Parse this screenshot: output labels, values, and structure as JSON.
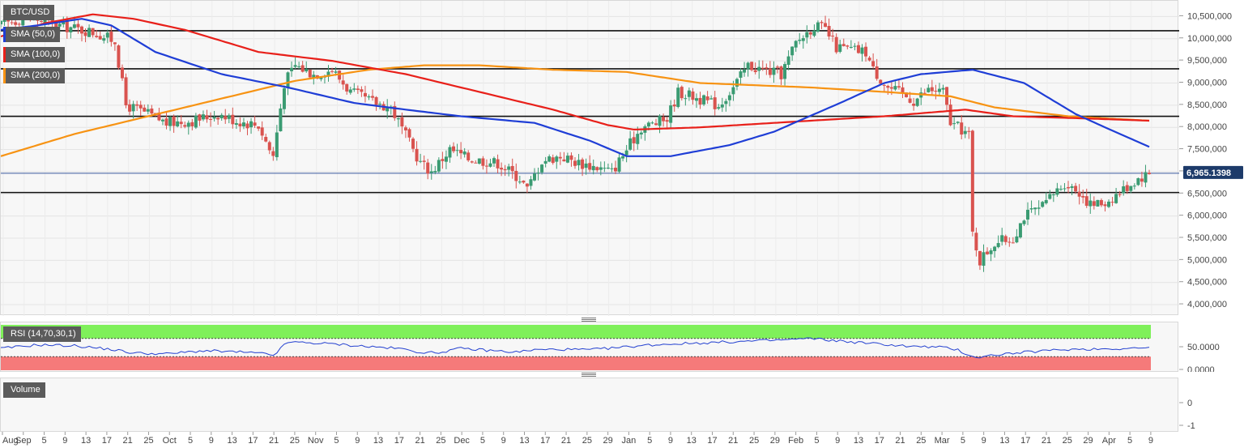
{
  "chart_data": [
    {
      "type": "candlestick",
      "title": "BTC/USD",
      "ylim": [
        3800000,
        10800000
      ],
      "y_ticks": [
        "4,000,000",
        "4,500,000",
        "5,000,000",
        "5,500,000",
        "6,000,000",
        "6,500,000",
        "7,000,000",
        "7,500,000",
        "8,000,000",
        "8,500,000",
        "9,000,000",
        "9,500,000",
        "10,000,000",
        "10,500,000"
      ],
      "x_ticks": [
        "Aug",
        "Sep",
        "5",
        "9",
        "13",
        "17",
        "21",
        "25",
        "Oct",
        "5",
        "9",
        "13",
        "17",
        "21",
        "25",
        "Nov",
        "5",
        "9",
        "13",
        "17",
        "21",
        "25",
        "Dec",
        "5",
        "9",
        "13",
        "17",
        "21",
        "25",
        "29",
        "Jan",
        "5",
        "9",
        "13",
        "17",
        "21",
        "25",
        "29",
        "Feb",
        "5",
        "9",
        "13",
        "17",
        "21",
        "25",
        "Mar",
        "5",
        "9",
        "13",
        "17",
        "21",
        "25",
        "29",
        "Apr",
        "5",
        "9"
      ],
      "legend": [
        "SMA (50,0)",
        "SMA (100,0)",
        "SMA (200,0)"
      ],
      "last_price_label": "6,965.1398",
      "last_price": 6965000,
      "horizontal_levels": [
        10180000,
        9320000,
        8250000,
        6530000
      ],
      "grid": true,
      "colors": {
        "up": "#3a9b72",
        "down": "#d9534f",
        "sma50": "#1f3ed6",
        "sma100": "#e8201a",
        "sma200": "#f79313",
        "last_price_tag": "#1d3b6a"
      },
      "price_anchors": [
        [
          0,
          10300000
        ],
        [
          7,
          10500000
        ],
        [
          16,
          10300000
        ],
        [
          25,
          10150000
        ],
        [
          31,
          9950000
        ],
        [
          34,
          8500000
        ],
        [
          40,
          8300000
        ],
        [
          45,
          8100000
        ],
        [
          52,
          8150000
        ],
        [
          59,
          8300000
        ],
        [
          64,
          8150000
        ],
        [
          70,
          8050000
        ],
        [
          73,
          7500000
        ],
        [
          74,
          7350000
        ],
        [
          77,
          9000000
        ],
        [
          80,
          9400000
        ],
        [
          85,
          9200000
        ],
        [
          90,
          9300000
        ],
        [
          95,
          8800000
        ],
        [
          100,
          8600000
        ],
        [
          106,
          8450000
        ],
        [
          111,
          7650000
        ],
        [
          114,
          7200000
        ],
        [
          117,
          7000000
        ],
        [
          122,
          7500000
        ],
        [
          127,
          7300000
        ],
        [
          131,
          7250000
        ],
        [
          135,
          7200000
        ],
        [
          141,
          6850000
        ],
        [
          143,
          6600000
        ],
        [
          147,
          7250000
        ],
        [
          152,
          7350000
        ],
        [
          157,
          7200000
        ],
        [
          162,
          7100000
        ],
        [
          166,
          7000000
        ],
        [
          170,
          7500000
        ],
        [
          174,
          8000000
        ],
        [
          178,
          8100000
        ],
        [
          181,
          8200000
        ],
        [
          184,
          8800000
        ],
        [
          188,
          8700000
        ],
        [
          191,
          8600000
        ],
        [
          195,
          8500000
        ],
        [
          199,
          8900000
        ],
        [
          203,
          9400000
        ],
        [
          207,
          9300000
        ],
        [
          212,
          9200000
        ],
        [
          216,
          9900000
        ],
        [
          221,
          10300000
        ],
        [
          224,
          10200000
        ],
        [
          227,
          9800000
        ],
        [
          231,
          9750000
        ],
        [
          235,
          9700000
        ],
        [
          237,
          9300000
        ],
        [
          241,
          8900000
        ],
        [
          245,
          8750000
        ],
        [
          248,
          8600000
        ],
        [
          252,
          8850000
        ],
        [
          256,
          8800000
        ],
        [
          258,
          8100000
        ],
        [
          262,
          7900000
        ],
        [
          263,
          7800000
        ],
        [
          264,
          5600000
        ],
        [
          266,
          5000000
        ],
        [
          270,
          5400000
        ],
        [
          275,
          5500000
        ],
        [
          278,
          6000000
        ],
        [
          283,
          6200000
        ],
        [
          286,
          6500000
        ],
        [
          289,
          6750000
        ],
        [
          293,
          6550000
        ],
        [
          296,
          6250000
        ],
        [
          300,
          6300000
        ],
        [
          305,
          6600000
        ],
        [
          309,
          6850000
        ],
        [
          312,
          6965000
        ]
      ],
      "sma_50": [
        [
          0,
          10200000
        ],
        [
          10,
          10300000
        ],
        [
          22,
          10450000
        ],
        [
          30,
          10300000
        ],
        [
          42,
          9700000
        ],
        [
          60,
          9200000
        ],
        [
          78,
          8900000
        ],
        [
          96,
          8550000
        ],
        [
          110,
          8400000
        ],
        [
          125,
          8250000
        ],
        [
          145,
          8100000
        ],
        [
          160,
          7700000
        ],
        [
          170,
          7350000
        ],
        [
          182,
          7350000
        ],
        [
          198,
          7600000
        ],
        [
          210,
          7900000
        ],
        [
          228,
          8550000
        ],
        [
          240,
          9000000
        ],
        [
          250,
          9200000
        ],
        [
          264,
          9300000
        ],
        [
          278,
          9000000
        ],
        [
          292,
          8300000
        ],
        [
          300,
          8000000
        ],
        [
          312,
          7560000
        ]
      ],
      "sma_100": [
        [
          0,
          10050000
        ],
        [
          12,
          10350000
        ],
        [
          25,
          10550000
        ],
        [
          36,
          10450000
        ],
        [
          50,
          10200000
        ],
        [
          70,
          9700000
        ],
        [
          90,
          9500000
        ],
        [
          110,
          9200000
        ],
        [
          130,
          8800000
        ],
        [
          150,
          8400000
        ],
        [
          165,
          8050000
        ],
        [
          172,
          7950000
        ],
        [
          190,
          8000000
        ],
        [
          210,
          8100000
        ],
        [
          240,
          8250000
        ],
        [
          262,
          8400000
        ],
        [
          275,
          8250000
        ],
        [
          295,
          8200000
        ],
        [
          312,
          8150000
        ]
      ],
      "sma_200": [
        [
          0,
          7350000
        ],
        [
          20,
          7850000
        ],
        [
          40,
          8250000
        ],
        [
          60,
          8650000
        ],
        [
          80,
          9050000
        ],
        [
          100,
          9300000
        ],
        [
          115,
          9400000
        ],
        [
          130,
          9400000
        ],
        [
          150,
          9300000
        ],
        [
          170,
          9250000
        ],
        [
          190,
          9000000
        ],
        [
          205,
          8950000
        ],
        [
          220,
          8900000
        ],
        [
          240,
          8800000
        ],
        [
          258,
          8700000
        ],
        [
          270,
          8450000
        ],
        [
          290,
          8250000
        ],
        [
          312,
          8150000
        ]
      ]
    },
    {
      "type": "line",
      "title": "RSI (14,70,30,1)",
      "ylim": [
        0,
        100
      ],
      "y_ticks": [
        "50.0000",
        "0.0000"
      ],
      "overbought": 70,
      "oversold": 30,
      "rsi_anchors": [
        [
          0,
          48
        ],
        [
          10,
          56
        ],
        [
          20,
          54
        ],
        [
          30,
          46
        ],
        [
          36,
          38
        ],
        [
          45,
          36
        ],
        [
          55,
          43
        ],
        [
          65,
          40
        ],
        [
          72,
          36
        ],
        [
          74,
          33
        ],
        [
          78,
          62
        ],
        [
          85,
          60
        ],
        [
          92,
          57
        ],
        [
          100,
          52
        ],
        [
          108,
          48
        ],
        [
          114,
          40
        ],
        [
          118,
          38
        ],
        [
          125,
          48
        ],
        [
          132,
          44
        ],
        [
          140,
          40
        ],
        [
          145,
          45
        ],
        [
          152,
          46
        ],
        [
          160,
          45
        ],
        [
          168,
          50
        ],
        [
          175,
          55
        ],
        [
          182,
          58
        ],
        [
          190,
          60
        ],
        [
          200,
          63
        ],
        [
          210,
          66
        ],
        [
          220,
          70
        ],
        [
          230,
          63
        ],
        [
          240,
          57
        ],
        [
          248,
          52
        ],
        [
          255,
          51
        ],
        [
          260,
          45
        ],
        [
          263,
          33
        ],
        [
          266,
          28
        ],
        [
          270,
          34
        ],
        [
          276,
          38
        ],
        [
          282,
          42
        ],
        [
          290,
          46
        ],
        [
          298,
          47
        ],
        [
          305,
          48
        ],
        [
          312,
          50
        ]
      ]
    },
    {
      "type": "bar",
      "title": "Volume",
      "y_ticks": [
        "0",
        "-1"
      ]
    }
  ],
  "ui": {
    "price_label": "BTC/USD",
    "sma50_label": "SMA (50,0)",
    "sma100_label": "SMA (100,0)",
    "sma200_label": "SMA (200,0)",
    "rsi_label": "RSI (14,70,30,1)",
    "volume_label": "Volume",
    "last_price_label": "6,965.1398"
  }
}
